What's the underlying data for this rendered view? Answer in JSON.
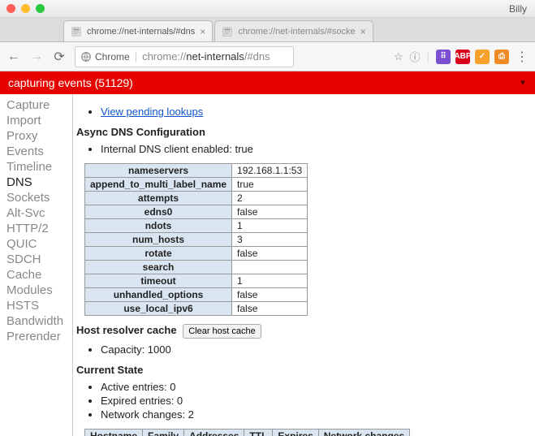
{
  "window": {
    "user": "Billy"
  },
  "tabs": [
    {
      "title": "chrome://net-internals/#dns",
      "active": true
    },
    {
      "title": "chrome://net-internals/#socke",
      "active": false
    }
  ],
  "navbar": {
    "chip": "Chrome",
    "url_prefix": "chrome://",
    "url_bold": "net-internals",
    "url_suffix": "/#dns"
  },
  "extensions": [
    {
      "bg": "#7b4fd1",
      "fg": "#fff",
      "label": "⠿"
    },
    {
      "bg": "#d9001b",
      "fg": "#fff",
      "label": "ABP"
    },
    {
      "bg": "#f7a12b",
      "fg": "#fff",
      "label": "✓"
    },
    {
      "bg": "#f08a24",
      "fg": "#fff",
      "label": "⎙"
    }
  ],
  "banner": {
    "text": "capturing events (51129)"
  },
  "sidebar": {
    "items": [
      "Capture",
      "Import",
      "Proxy",
      "Events",
      "Timeline",
      "DNS",
      "Sockets",
      "Alt-Svc",
      "HTTP/2",
      "QUIC",
      "SDCH",
      "Cache",
      "Modules",
      "HSTS",
      "Bandwidth",
      "Prerender"
    ],
    "active": "DNS"
  },
  "main": {
    "pending_link": "View pending lookups",
    "async_header": "Async DNS Configuration",
    "internal_line": "Internal DNS client enabled: true",
    "config_rows": [
      {
        "k": "nameservers",
        "v": "192.168.1.1:53"
      },
      {
        "k": "append_to_multi_label_name",
        "v": "true"
      },
      {
        "k": "attempts",
        "v": "2"
      },
      {
        "k": "edns0",
        "v": "false"
      },
      {
        "k": "ndots",
        "v": "1"
      },
      {
        "k": "num_hosts",
        "v": "3"
      },
      {
        "k": "rotate",
        "v": "false"
      },
      {
        "k": "search",
        "v": ""
      },
      {
        "k": "timeout",
        "v": "1"
      },
      {
        "k": "unhandled_options",
        "v": "false"
      },
      {
        "k": "use_local_ipv6",
        "v": "false"
      }
    ],
    "resolver_header": "Host resolver cache",
    "clear_btn": "Clear host cache",
    "capacity_line": "Capacity: 1000",
    "state_header": "Current State",
    "state_bullets": [
      "Active entries: 0",
      "Expired entries: 0",
      "Network changes: 2"
    ],
    "table_headers": [
      "Hostname",
      "Family",
      "Addresses",
      "TTL",
      "Expires",
      "Network changes"
    ]
  }
}
